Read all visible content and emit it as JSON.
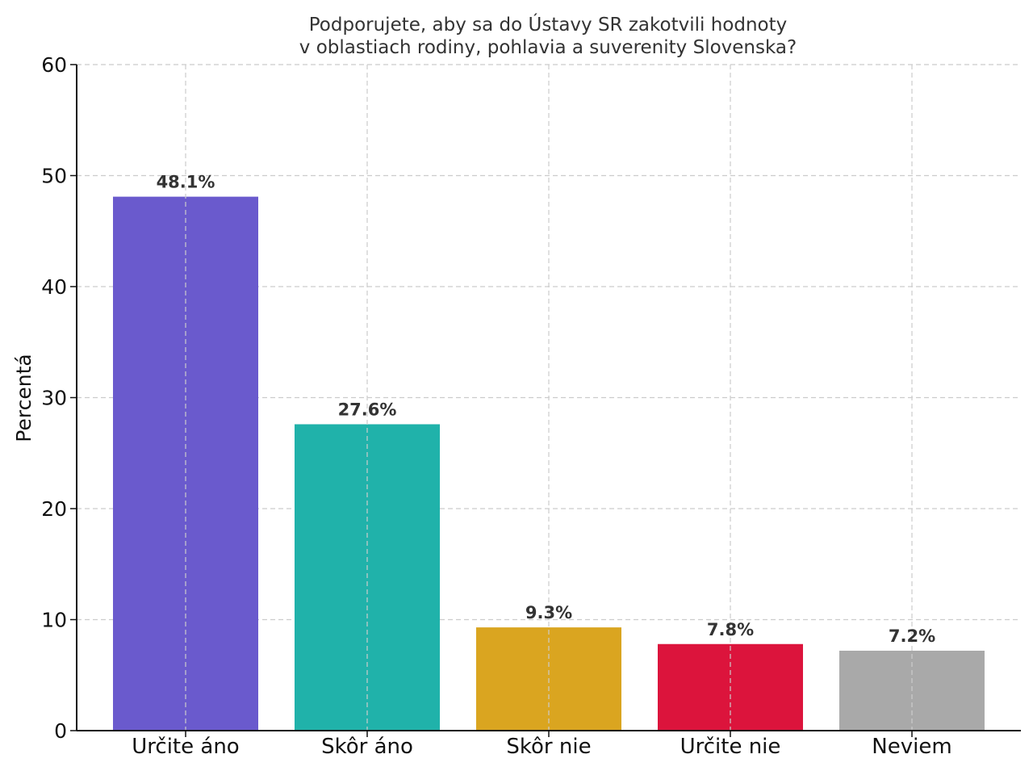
{
  "chart_data": {
    "type": "bar",
    "title": [
      "Podporujete, aby sa do Ústavy SR zakotvili hodnoty",
      "v oblastiach rodiny, pohlavia a suverenity Slovenska?"
    ],
    "xlabel": "",
    "ylabel": "Percentá",
    "ylim": [
      0,
      60
    ],
    "yticks": [
      0,
      10,
      20,
      30,
      40,
      50,
      60
    ],
    "grid": true,
    "categories": [
      "Určite áno",
      "Skôr áno",
      "Skôr nie",
      "Určite nie",
      "Neviem"
    ],
    "values": [
      48.1,
      27.6,
      9.3,
      7.8,
      7.2
    ],
    "data_labels": [
      "48.1%",
      "27.6%",
      "9.3%",
      "7.8%",
      "7.2%"
    ],
    "colors": [
      "#6a5acd",
      "#20b2aa",
      "#daa520",
      "#dc143c",
      "#a9a9a9"
    ]
  }
}
